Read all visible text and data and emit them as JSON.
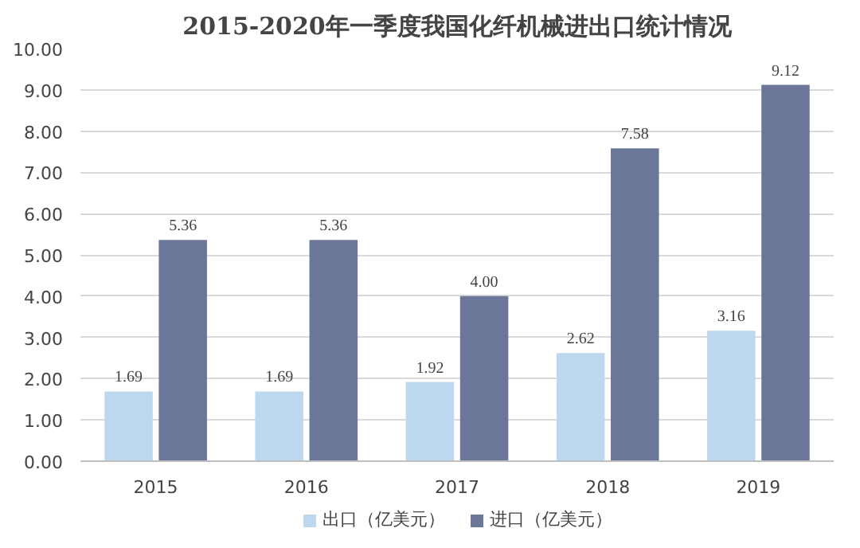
{
  "chart_data": {
    "type": "bar",
    "title": "2015-2020年一季度我国化纤机械进出口统计情况",
    "categories": [
      "2015",
      "2016",
      "2017",
      "2018",
      "2019"
    ],
    "series": [
      {
        "name": "出口（亿美元）",
        "color": "#bdd7ee",
        "values": [
          1.69,
          1.69,
          1.92,
          2.62,
          3.16
        ],
        "value_labels": [
          "1.69",
          "1.69",
          "1.92",
          "2.62",
          "3.16"
        ]
      },
      {
        "name": "进口（亿美元）",
        "color": "#6b7699",
        "values": [
          5.36,
          5.36,
          4.0,
          7.58,
          9.12
        ],
        "value_labels": [
          "5.36",
          "5.36",
          "4.00",
          "7.58",
          "9.12"
        ]
      }
    ],
    "ylim": [
      0,
      10
    ],
    "yticks": [
      {
        "value": 0,
        "label": "0.00"
      },
      {
        "value": 1,
        "label": "1.00"
      },
      {
        "value": 2,
        "label": "2.00"
      },
      {
        "value": 3,
        "label": "3.00"
      },
      {
        "value": 4,
        "label": "4.00"
      },
      {
        "value": 5,
        "label": "5.00"
      },
      {
        "value": 6,
        "label": "6.00"
      },
      {
        "value": 7,
        "label": "7.00"
      },
      {
        "value": 8,
        "label": "8.00"
      },
      {
        "value": 9,
        "label": "9.00"
      },
      {
        "value": 10,
        "label": "10.00"
      }
    ],
    "grid": "y",
    "legend": "bottom"
  }
}
